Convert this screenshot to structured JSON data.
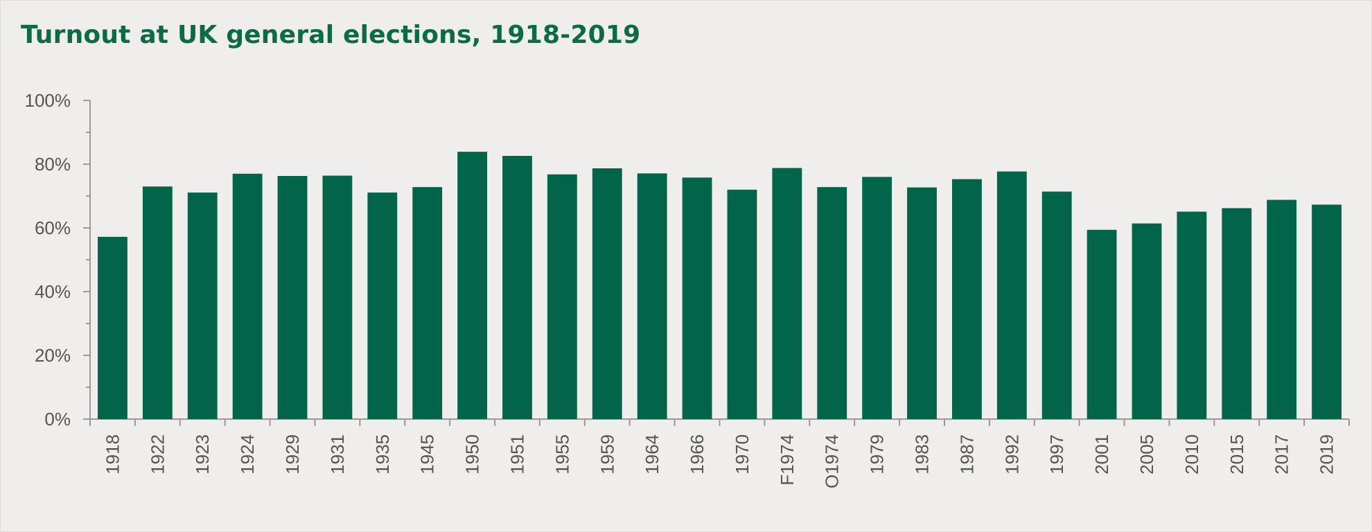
{
  "chart_data": {
    "type": "bar",
    "title": "Turnout at UK general elections, 1918-2019",
    "xlabel": "",
    "ylabel": "",
    "categories": [
      "1918",
      "1922",
      "1923",
      "1924",
      "1929",
      "1931",
      "1935",
      "1945",
      "1950",
      "1951",
      "1955",
      "1959",
      "1964",
      "1966",
      "1970",
      "F1974",
      "O1974",
      "1979",
      "1983",
      "1987",
      "1992",
      "1997",
      "2001",
      "2005",
      "2010",
      "2015",
      "2017",
      "2019"
    ],
    "values": [
      57.2,
      73.0,
      71.1,
      77.0,
      76.3,
      76.4,
      71.1,
      72.8,
      83.9,
      82.6,
      76.8,
      78.7,
      77.1,
      75.8,
      72.0,
      78.8,
      72.8,
      76.0,
      72.7,
      75.3,
      77.7,
      71.4,
      59.4,
      61.4,
      65.1,
      66.2,
      68.8,
      67.3
    ],
    "ylim": [
      0,
      100
    ],
    "yticks": [
      0,
      20,
      40,
      60,
      80,
      100
    ],
    "ytick_labels": [
      "0%",
      "20%",
      "40%",
      "60%",
      "80%",
      "100%"
    ],
    "grid": false,
    "bar_color": "#02654a",
    "title_color": "#0b6b45"
  }
}
